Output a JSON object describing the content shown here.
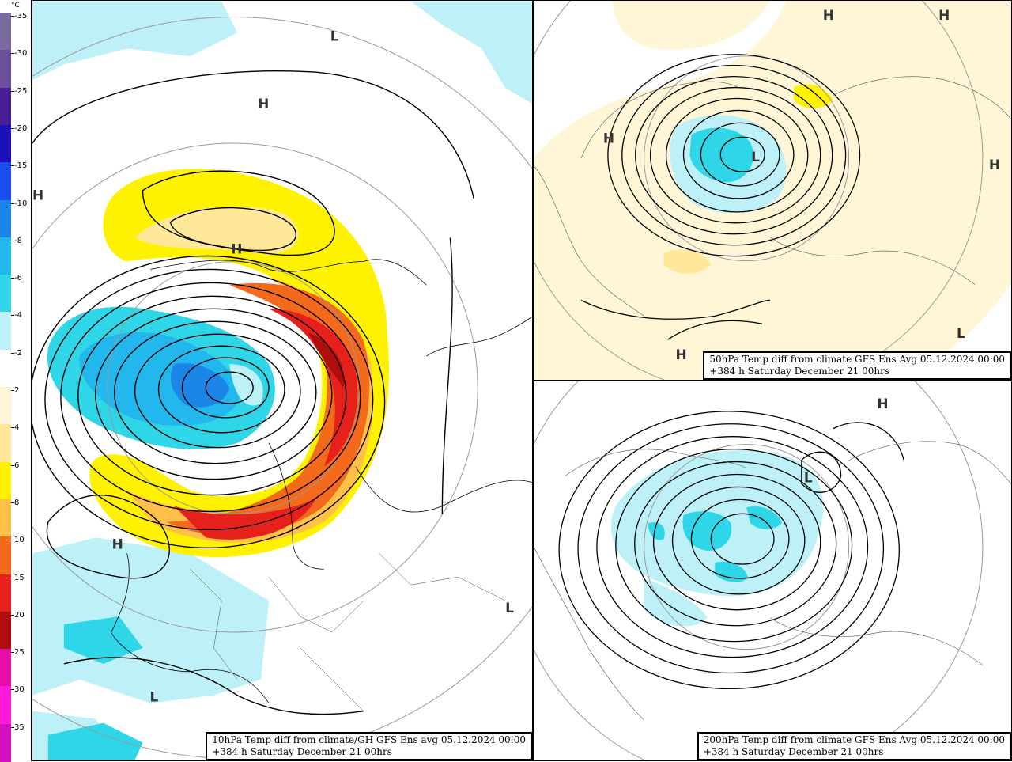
{
  "colorbar": {
    "unit": "°C",
    "colors": [
      "#7a6a9e",
      "#6a4f9a",
      "#4a1f96",
      "#1a10b8",
      "#1b4ef0",
      "#1c86e8",
      "#22b8ee",
      "#2fd6e8",
      "#bdf1f7",
      "#ffffff",
      "#fff6d8",
      "#ffe89a",
      "#fff200",
      "#ffc04a",
      "#f46a1c",
      "#e6211c",
      "#b00d0d",
      "#e60ea6",
      "#ff1ad9",
      "#d40fbf"
    ],
    "labels": [
      "-35",
      "-30",
      "-25",
      "-20",
      "-15",
      "-10",
      "-8",
      "-6",
      "-4",
      "-2",
      "2",
      "4",
      "6",
      "8",
      "10",
      "15",
      "20",
      "25",
      "30",
      "35"
    ]
  },
  "panels": {
    "main": {
      "caption_line1": "10hPa Temp diff from climate/GH GFS Ens avg 05.12.2024 00:00",
      "caption_line2": "+384 h Saturday December 21 00hrs",
      "labels": [
        {
          "text": "L",
          "name": "low-pressure-label"
        },
        {
          "text": "H",
          "name": "high-pressure-label"
        },
        {
          "text": "H",
          "name": "high-pressure-label"
        },
        {
          "text": "H",
          "name": "high-pressure-label"
        },
        {
          "text": "H",
          "name": "high-pressure-label"
        },
        {
          "text": "L",
          "name": "low-pressure-label"
        },
        {
          "text": "L",
          "name": "low-pressure-label"
        }
      ]
    },
    "p50": {
      "caption_line1": "50hPa Temp diff from climate GFS Ens Avg 05.12.2024 00:00",
      "caption_line2": "+384 h Saturday December 21 00hrs",
      "labels": [
        {
          "text": "H",
          "name": "high-pressure-label"
        },
        {
          "text": "H",
          "name": "high-pressure-label"
        },
        {
          "text": "H",
          "name": "high-pressure-label"
        },
        {
          "text": "H",
          "name": "high-pressure-label"
        },
        {
          "text": "L",
          "name": "low-pressure-label"
        },
        {
          "text": "H",
          "name": "high-pressure-label"
        },
        {
          "text": "L",
          "name": "low-pressure-label"
        }
      ]
    },
    "p200": {
      "caption_line1": "200hPa Temp diff from climate GFS Ens Avg 05.12.2024 00:00",
      "caption_line2": "+384 h Saturday December 21 00hrs",
      "labels": [
        {
          "text": "H",
          "name": "high-pressure-label"
        },
        {
          "text": "L",
          "name": "low-pressure-label"
        }
      ]
    }
  }
}
